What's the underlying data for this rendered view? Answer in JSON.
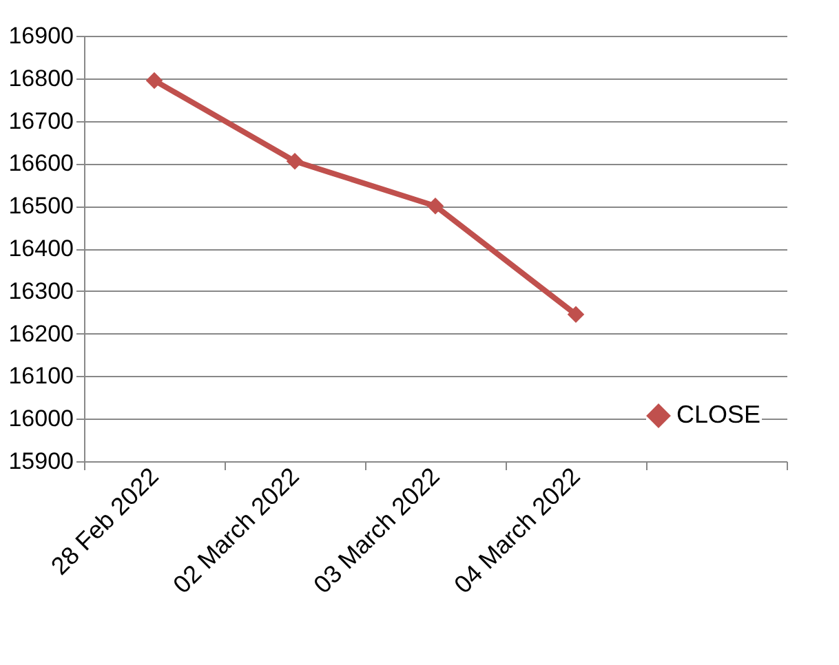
{
  "chart_data": {
    "type": "line",
    "categories": [
      "28 Feb 2022",
      "02 March 2022",
      "03 March 2022",
      "04 March 2022",
      null
    ],
    "series": [
      {
        "name": "CLOSE",
        "color": "#c0504d",
        "values": [
          16795,
          16605,
          16500,
          16245,
          null
        ]
      }
    ],
    "ylim": [
      15900,
      16900
    ],
    "yticks": [
      15900,
      16000,
      16100,
      16200,
      16300,
      16400,
      16500,
      16600,
      16700,
      16800,
      16900
    ],
    "grid": "y",
    "legend": "bottom right",
    "marker": "diamond",
    "line_style": "solid"
  }
}
